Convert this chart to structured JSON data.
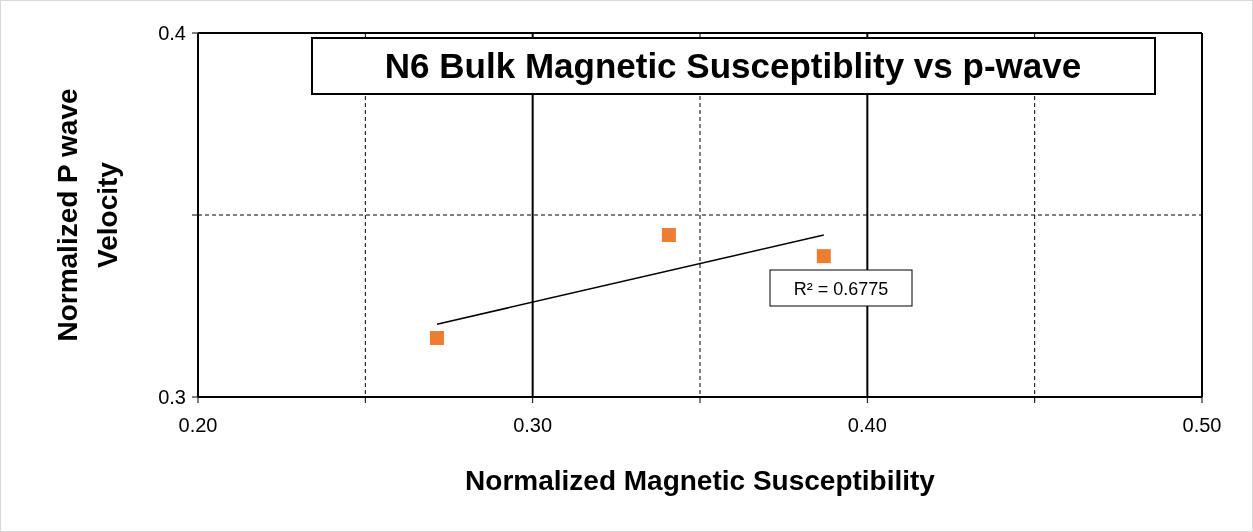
{
  "chart_data": {
    "type": "scatter",
    "title": "N6 Bulk Magnetic Susceptiblity vs p-wave",
    "xlabel": "Normalized Magnetic Susceptibility",
    "ylabel": "Normalized P wave Velocity",
    "annotations": [
      "R² = 0.6775"
    ],
    "xlim": [
      0.2,
      0.5
    ],
    "ylim": [
      0.3,
      0.4
    ],
    "xticks": [
      {
        "value": 0.2,
        "label": "0.20"
      },
      {
        "value": 0.25,
        "label": null
      },
      {
        "value": 0.3,
        "label": "0.30"
      },
      {
        "value": 0.35,
        "label": null
      },
      {
        "value": 0.4,
        "label": "0.40"
      },
      {
        "value": 0.45,
        "label": null
      },
      {
        "value": 0.5,
        "label": "0.50"
      }
    ],
    "yticks": [
      0.3,
      {
        "value": 0.35,
        "label": null
      },
      0.4
    ],
    "grid": true,
    "marker": "square",
    "series": [
      {
        "type": "scatter",
        "color": "#ed7d31",
        "x": [
          0.2714,
          0.3407,
          0.387
        ],
        "values": [
          0.3162,
          0.3445,
          0.3387
        ]
      },
      {
        "type": "line",
        "color": "#000000",
        "marker": "none",
        "x": [
          0.2714,
          0.387
        ],
        "values": [
          0.32,
          0.3445
        ]
      }
    ]
  }
}
